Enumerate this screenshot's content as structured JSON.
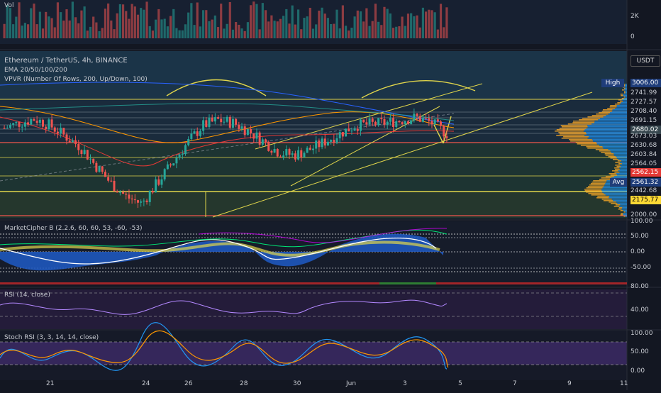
{
  "vol_pane": {
    "label": "Vol",
    "ticks": [
      "2K",
      "0"
    ]
  },
  "price_pane": {
    "title": "Ethereum / TetherUS, 4h, BINANCE",
    "ema": "EMA 20/50/100/200",
    "vpvr": "VPVR (Number Of Rows, 200, Up/Down, 100)",
    "currency": "USDT",
    "high_label": "High",
    "high_value": "3006.00",
    "avg_label": "Avg",
    "levels": [
      "2741.99",
      "2727.57",
      "2708.40",
      "2691.15",
      "2680.02",
      "2673.03",
      "2630.68",
      "2603.84",
      "2564.05",
      "2562.15",
      "2561.32",
      "2442.68",
      "2175.77",
      "2000.00"
    ]
  },
  "mc_pane": {
    "title": "MarketCipher B (2.2.6, 60, 60, 53, -60, -53)",
    "ticks": [
      "100.00",
      "50.00",
      "0.00",
      "-50.00"
    ]
  },
  "rsi_pane": {
    "title": "RSI (14, close)",
    "ticks": [
      "80.00",
      "40.00"
    ]
  },
  "stoch_pane": {
    "title": "Stoch RSI (3, 3, 14, 14, close)",
    "ticks": [
      "100.00",
      "50.00",
      "0.00"
    ]
  },
  "dates": [
    "21",
    "24",
    "26",
    "28",
    "30",
    "Jun",
    "3",
    "5",
    "7",
    "9",
    "11"
  ],
  "colors": {
    "up": "#26a69a",
    "down": "#ef5350",
    "yellow": "#e0d54b",
    "blue": "#2962ff",
    "purple": "#7e57c2"
  },
  "chart_data": {
    "type": "candlestick",
    "x_range": [
      "May 19",
      "Jun 11"
    ],
    "ylim": [
      2000,
      3006
    ],
    "close_approx": [
      2660,
      2700,
      2730,
      2680,
      2600,
      2520,
      2380,
      2250,
      2150,
      2100,
      2250,
      2400,
      2550,
      2680,
      2720,
      2700,
      2640,
      2560,
      2480,
      2460,
      2500,
      2560,
      2620,
      2680,
      2690,
      2700,
      2720,
      2740,
      2700,
      2620
    ]
  }
}
